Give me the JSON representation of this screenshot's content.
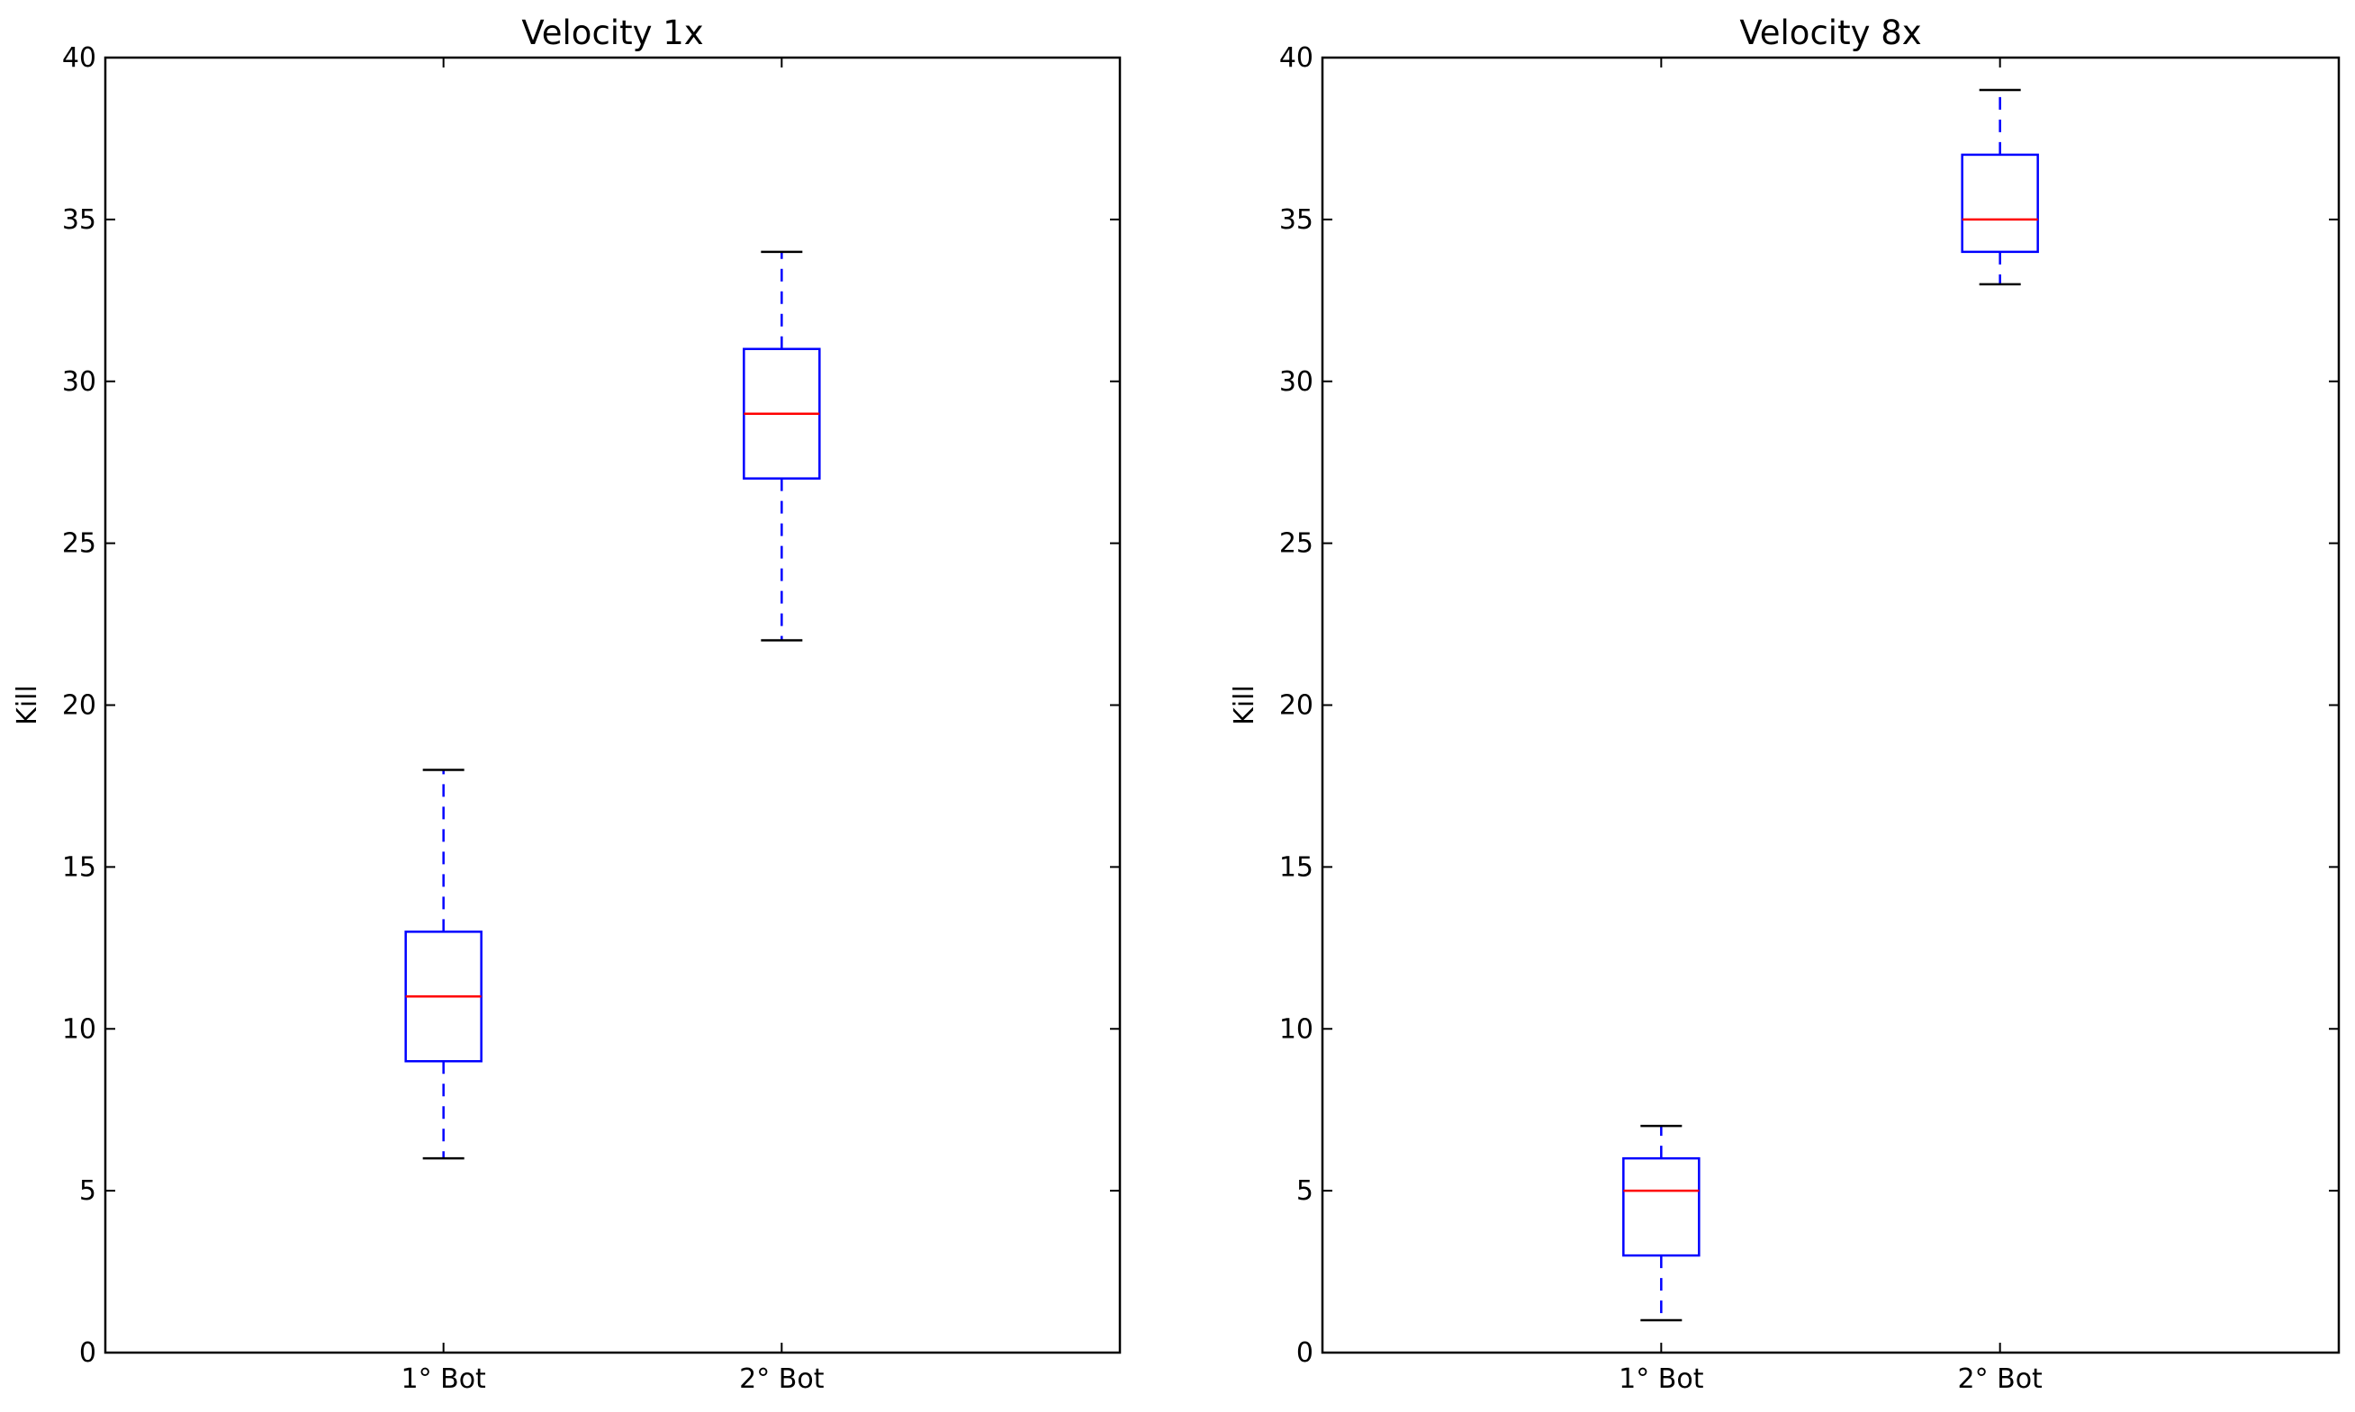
{
  "chart_data": [
    {
      "type": "boxplot",
      "title": "Velocity 1x",
      "xlabel": "",
      "ylabel": "Kill",
      "categories": [
        "1° Bot",
        "2° Bot"
      ],
      "ylim": [
        0,
        40
      ],
      "yticks": [
        0,
        5,
        10,
        15,
        20,
        25,
        30,
        35,
        40
      ],
      "yticklabels": [
        "0",
        "5",
        "10",
        "15",
        "20",
        "25",
        "30",
        "35",
        "40"
      ],
      "grid": false,
      "boxes": [
        {
          "category": "1° Bot",
          "whisker_low": 6,
          "q1": 9,
          "median": 11,
          "q3": 13,
          "whisker_high": 18
        },
        {
          "category": "2° Bot",
          "whisker_low": 22,
          "q1": 27,
          "median": 29,
          "q3": 31,
          "whisker_high": 34
        }
      ]
    },
    {
      "type": "boxplot",
      "title": "Velocity 8x",
      "xlabel": "",
      "ylabel": "Kill",
      "categories": [
        "1° Bot",
        "2° Bot"
      ],
      "ylim": [
        0,
        40
      ],
      "yticks": [
        0,
        5,
        10,
        15,
        20,
        25,
        30,
        35,
        40
      ],
      "yticklabels": [
        "0",
        "5",
        "10",
        "15",
        "20",
        "25",
        "30",
        "35",
        "40"
      ],
      "grid": false,
      "boxes": [
        {
          "category": "1° Bot",
          "whisker_low": 1,
          "q1": 3,
          "median": 5,
          "q3": 6,
          "whisker_high": 7
        },
        {
          "category": "2° Bot",
          "whisker_low": 33,
          "q1": 34,
          "median": 35,
          "q3": 37,
          "whisker_high": 39
        }
      ]
    }
  ],
  "colors": {
    "box": "#0000ff",
    "median": "#ff0000",
    "whisker": "#0000ff",
    "cap": "#000000",
    "frame": "#000000"
  }
}
